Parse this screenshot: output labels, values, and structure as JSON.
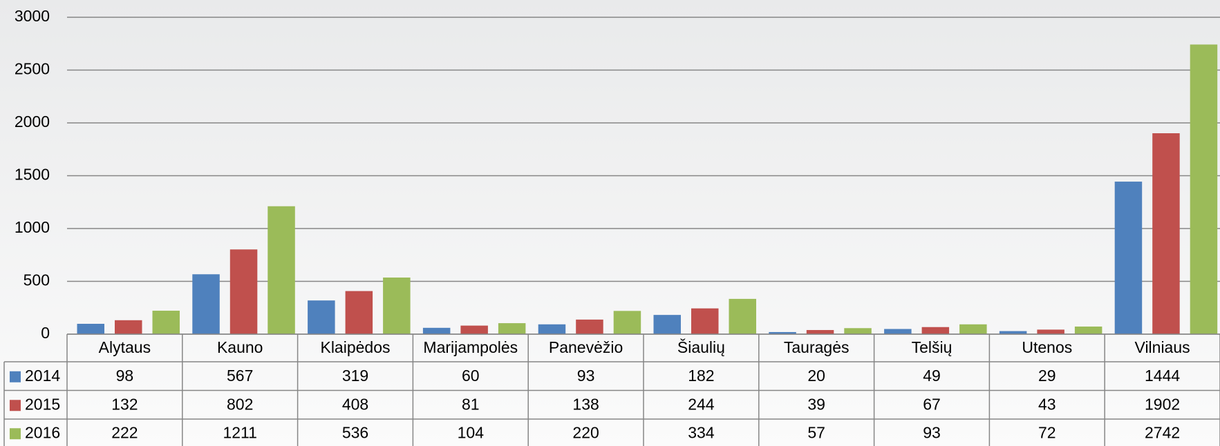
{
  "chart_data": {
    "type": "bar",
    "categories": [
      "Alytaus",
      "Kauno",
      "Klaipėdos",
      "Marijampolės",
      "Panevėžio",
      "Šiaulių",
      "Tauragės",
      "Telšių",
      "Utenos",
      "Vilniaus"
    ],
    "series": [
      {
        "name": "2014",
        "color": "#4f81bd",
        "values": [
          98,
          567,
          319,
          60,
          93,
          182,
          20,
          49,
          29,
          1444
        ]
      },
      {
        "name": "2015",
        "color": "#c0504d",
        "values": [
          132,
          802,
          408,
          81,
          138,
          244,
          39,
          67,
          43,
          1902
        ]
      },
      {
        "name": "2016",
        "color": "#9bbb59",
        "values": [
          222,
          1211,
          536,
          104,
          220,
          334,
          57,
          93,
          72,
          2742
        ]
      }
    ],
    "ylim": [
      0,
      3000
    ],
    "yticks": [
      0,
      500,
      1000,
      1500,
      2000,
      2500,
      3000
    ],
    "grid": true
  }
}
